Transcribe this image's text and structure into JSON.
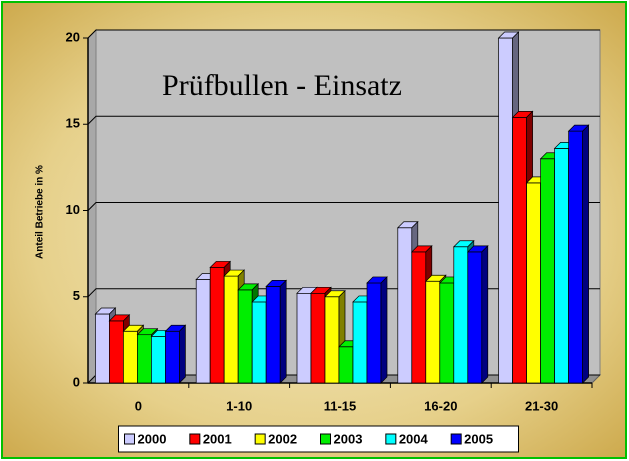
{
  "chart_data": {
    "type": "bar3d",
    "title": "Prüfbullen - Einsatz",
    "y_label": "Anteil Betriebe in %",
    "categories": [
      "0",
      "1-10",
      "11-15",
      "16-20",
      "21-30"
    ],
    "series": [
      {
        "name": "2000",
        "color": "#ccccff",
        "values": [
          4.0,
          6.0,
          5.2,
          9.0,
          20.0
        ]
      },
      {
        "name": "2001",
        "color": "#ff0000",
        "values": [
          3.6,
          6.7,
          5.2,
          7.6,
          15.4
        ]
      },
      {
        "name": "2002",
        "color": "#ffff00",
        "values": [
          3.0,
          6.2,
          5.0,
          5.9,
          11.6
        ]
      },
      {
        "name": "2003",
        "color": "#00ee00",
        "values": [
          2.8,
          5.4,
          2.1,
          5.8,
          13.0
        ]
      },
      {
        "name": "2004",
        "color": "#00ffff",
        "values": [
          2.7,
          4.7,
          4.7,
          7.9,
          13.6
        ]
      },
      {
        "name": "2005",
        "color": "#0000ff",
        "values": [
          3.0,
          5.6,
          5.8,
          7.6,
          14.6
        ]
      }
    ],
    "ylim": [
      0,
      20
    ],
    "yticks": [
      0,
      5,
      10,
      15,
      20
    ],
    "grid": true,
    "legend": "bottom"
  }
}
